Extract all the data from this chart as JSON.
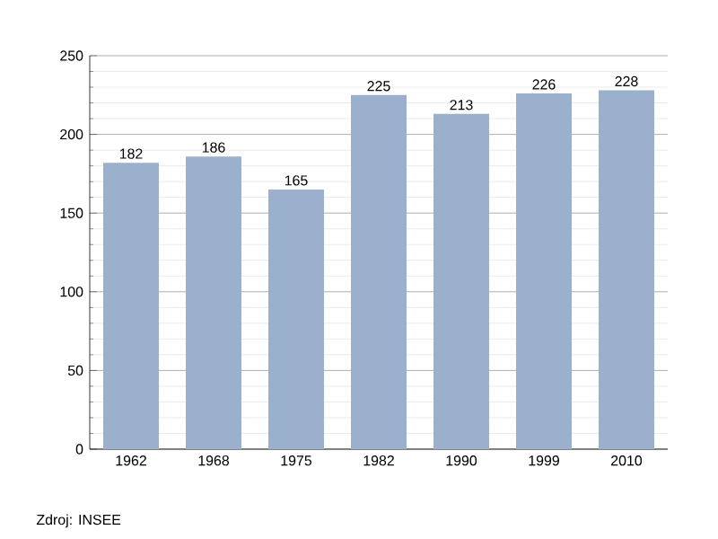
{
  "chart_data": {
    "type": "bar",
    "categories": [
      "1962",
      "1968",
      "1975",
      "1982",
      "1990",
      "1999",
      "2010"
    ],
    "values": [
      182,
      186,
      165,
      225,
      213,
      226,
      228
    ],
    "color": "#9ab0cc",
    "ylim": [
      0,
      250
    ],
    "yticks": [
      0,
      50,
      100,
      150,
      200,
      250
    ],
    "grid": "y",
    "data_labels": true,
    "annotations": [
      "Zdroj: INSEE"
    ]
  }
}
